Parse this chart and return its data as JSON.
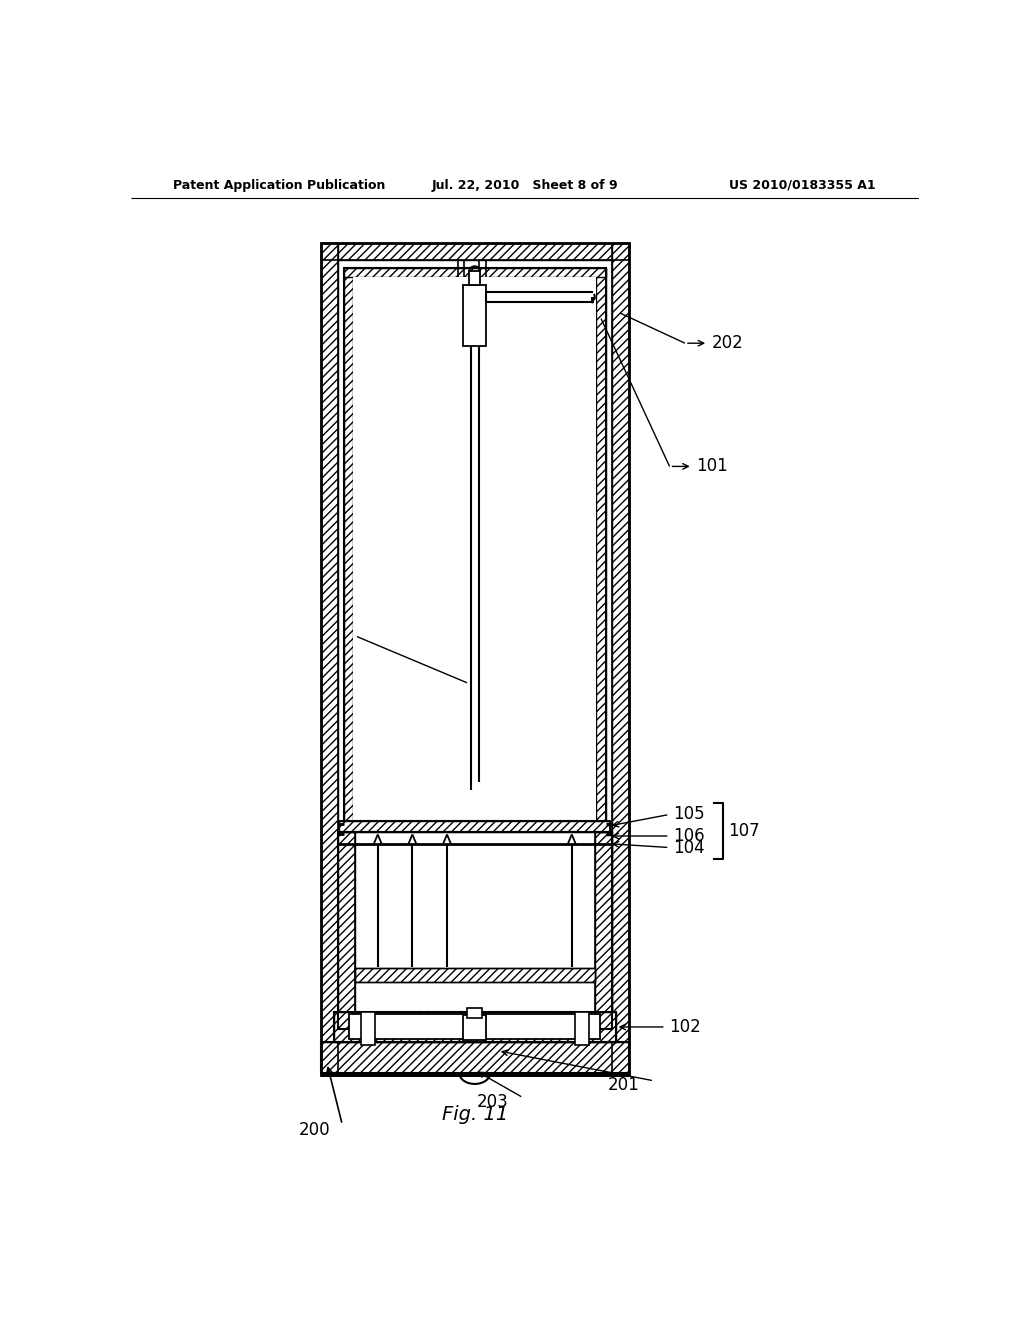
{
  "bg_color": "#ffffff",
  "header_left": "Patent Application Publication",
  "header_mid": "Jul. 22, 2010   Sheet 8 of 9",
  "header_right": "US 2010/0183355 A1",
  "fig_label": "Fig. 11"
}
